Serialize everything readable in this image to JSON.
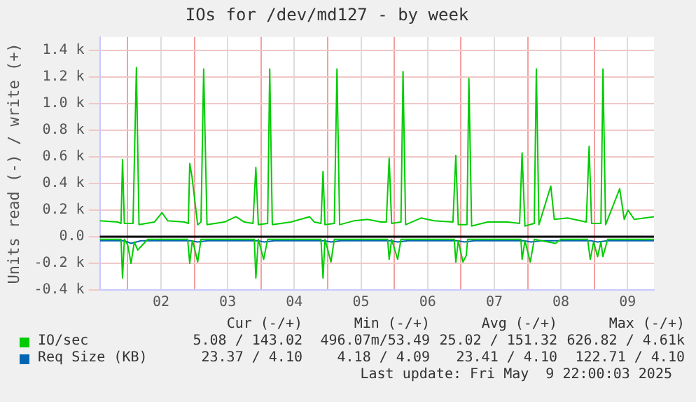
{
  "chart_data": {
    "type": "line",
    "title": "IOs for /dev/md127 - by week",
    "ylabel": "Units read (-) / write (+)",
    "xlim": [
      1.583,
      9.896
    ],
    "xticks": [
      {
        "value": 2,
        "label": null
      },
      {
        "value": 2.5,
        "label": "02"
      },
      {
        "value": 3,
        "label": null
      },
      {
        "value": 3.5,
        "label": "03"
      },
      {
        "value": 4,
        "label": null
      },
      {
        "value": 4.5,
        "label": "04"
      },
      {
        "value": 5,
        "label": null
      },
      {
        "value": 5.5,
        "label": "05"
      },
      {
        "value": 6,
        "label": null
      },
      {
        "value": 6.5,
        "label": "06"
      },
      {
        "value": 7,
        "label": null
      },
      {
        "value": 7.5,
        "label": "07"
      },
      {
        "value": 8,
        "label": null
      },
      {
        "value": 8.5,
        "label": "08"
      },
      {
        "value": 9,
        "label": null
      },
      {
        "value": 9.5,
        "label": "09"
      }
    ],
    "ylim": [
      -400,
      1500
    ],
    "yticks": [
      {
        "value": -400,
        "label": "-0.4 k"
      },
      {
        "value": -200,
        "label": "-0.2 k"
      },
      {
        "value": 0,
        "label": "0.0"
      },
      {
        "value": 200,
        "label": "0.2 k"
      },
      {
        "value": 400,
        "label": "0.4 k"
      },
      {
        "value": 600,
        "label": "0.6 k"
      },
      {
        "value": 800,
        "label": "0.8 k"
      },
      {
        "value": 1000,
        "label": "1.0 k"
      },
      {
        "value": 1200,
        "label": "1.2 k"
      },
      {
        "value": 1400,
        "label": "1.4 k"
      }
    ],
    "grid": true,
    "legend": "bottom",
    "marker": "none",
    "line_style": "solid",
    "ref_lines": [
      {
        "axis": "y",
        "value": 0,
        "color": "#000000"
      }
    ],
    "series": [
      {
        "name": "IO/sec",
        "color": "#00cc00",
        "x": [
          1.583,
          1.85,
          1.9,
          1.923,
          1.95,
          2.08,
          2.131,
          2.17,
          2.4,
          2.515,
          2.6,
          2.85,
          2.91,
          2.931,
          2.965,
          3.05,
          3.1,
          3.14,
          3.19,
          3.45,
          3.625,
          3.75,
          3.88,
          3.923,
          3.96,
          4.1,
          4.131,
          4.17,
          4.45,
          4.729,
          4.8,
          4.9,
          4.931,
          4.96,
          5.1,
          5.14,
          5.18,
          5.4,
          5.6,
          5.8,
          5.88,
          5.923,
          5.96,
          6.1,
          6.131,
          6.17,
          6.4,
          6.6,
          6.88,
          6.923,
          6.96,
          7.09,
          7.119,
          7.16,
          7.4,
          7.7,
          7.88,
          7.917,
          7.96,
          8.1,
          8.131,
          8.17,
          8.348,
          8.4,
          8.6,
          8.88,
          8.923,
          8.96,
          9.1,
          9.131,
          9.17,
          9.381,
          9.45,
          9.506,
          9.6,
          9.896
        ],
        "values": [
          120,
          110,
          100,
          580,
          100,
          100,
          1270,
          90,
          110,
          180,
          120,
          110,
          100,
          550,
          450,
          90,
          110,
          1260,
          90,
          110,
          150,
          110,
          100,
          520,
          90,
          100,
          1260,
          90,
          110,
          150,
          110,
          100,
          490,
          90,
          100,
          1260,
          90,
          120,
          130,
          110,
          110,
          590,
          100,
          110,
          1240,
          90,
          140,
          120,
          110,
          610,
          90,
          90,
          1190,
          80,
          110,
          110,
          100,
          630,
          80,
          100,
          1260,
          90,
          380,
          130,
          140,
          110,
          680,
          100,
          100,
          1260,
          90,
          360,
          130,
          200,
          130,
          150
        ]
      },
      {
        "color": "#00cc00",
        "x": [
          1.583,
          1.9,
          1.923,
          1.95,
          2.0,
          2.05,
          2.1,
          2.15,
          2.3,
          2.9,
          2.931,
          2.97,
          3.0,
          3.05,
          3.1,
          3.5,
          3.9,
          3.923,
          3.96,
          4.04,
          4.1,
          4.5,
          4.9,
          4.931,
          4.96,
          5.05,
          5.1,
          5.5,
          5.9,
          5.923,
          5.96,
          6.05,
          6.1,
          6.5,
          6.9,
          6.923,
          6.96,
          7.03,
          7.08,
          7.1,
          7.5,
          7.9,
          7.917,
          7.96,
          8.04,
          8.1,
          8.42,
          8.5,
          8.9,
          8.94,
          8.99,
          9.05,
          9.1,
          9.13,
          9.2,
          9.896
        ],
        "values": [
          -20,
          -20,
          -310,
          -20,
          -60,
          -200,
          -40,
          -100,
          -20,
          -20,
          -200,
          -30,
          -80,
          -190,
          -20,
          -20,
          -20,
          -310,
          -20,
          -170,
          -20,
          -20,
          -20,
          -310,
          -20,
          -190,
          -20,
          -20,
          -20,
          -170,
          -20,
          -170,
          -20,
          -20,
          -20,
          -190,
          -30,
          -190,
          -140,
          -20,
          -20,
          -20,
          -170,
          -30,
          -190,
          -20,
          -50,
          -20,
          -20,
          -170,
          -40,
          -150,
          -40,
          -150,
          -20,
          -20
        ]
      },
      {
        "name": "Req Size (KB)",
        "color": "#0066b3",
        "x": [
          1.583,
          1.95,
          2.05,
          2.2,
          2.95,
          3.05,
          3.2,
          3.95,
          4.05,
          4.2,
          4.95,
          5.05,
          5.2,
          5.95,
          6.05,
          6.2,
          6.95,
          7.05,
          7.2,
          7.95,
          8.05,
          8.2,
          8.95,
          9.05,
          9.2,
          9.896
        ],
        "values": [
          -30,
          -30,
          -50,
          -30,
          -30,
          -40,
          -30,
          -30,
          -40,
          -30,
          -30,
          -40,
          -30,
          -30,
          -40,
          -30,
          -30,
          -40,
          -30,
          -30,
          -40,
          -30,
          -30,
          -40,
          -30,
          -30
        ]
      }
    ],
    "annotations": [
      "Cur (-/+)",
      "Min (-/+)",
      "Avg (-/+)",
      "Max (-/+)",
      "5.08 / 143.02",
      "496.07m/53.49",
      "25.02 / 151.32",
      "626.82 / 4.61k",
      "23.37 / 4.10",
      "4.18 / 4.09",
      "23.41 / 4.10",
      "122.71 / 4.10",
      "Last update: Fri May  9 22:00:03 2025"
    ]
  }
}
